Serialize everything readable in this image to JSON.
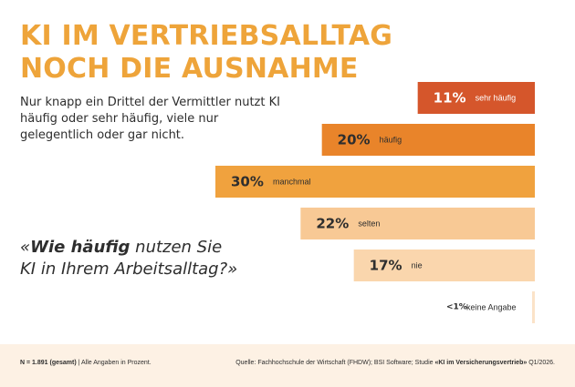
{
  "title": {
    "line1": "KI IM VERTRIEBSALLTAG",
    "line2": "NOCH DIE AUSNAHME"
  },
  "subtitle": "Nur knapp ein Drittel der Vermittler nutzt KI häufig oder sehr häufig, viele nur gelegentlich oder gar nicht.",
  "question": {
    "open": "«",
    "emphasis": "Wie häufig",
    "rest": " nutzen Sie KI in Ihrem Arbeitsalltag?»"
  },
  "footer": {
    "n_label": "N = 1.891 (gesamt)",
    "n_note": " | Alle Angaben in Prozent.",
    "source_prefix": "Quelle: Fachhochschule der Wirtschaft (FHDW); BSI Software; Studie ",
    "source_study": "«KI im Versicherungsvertrieb»",
    "source_suffix": " Q1/2026."
  },
  "colors": {
    "title": "#eea43a",
    "sehr_haeufig": "#d5562b",
    "haeufig": "#e9842a",
    "manchmal": "#f0a23e",
    "selten": "#f8c995",
    "nie": "#fad6ad",
    "keine_angabe": "#fbe3c8",
    "footer_bg": "#fdf1e4"
  },
  "chart_data": {
    "type": "bar",
    "orientation": "horizontal",
    "categories": [
      "sehr häufig",
      "häufig",
      "manchmal",
      "selten",
      "nie",
      "keine Angabe"
    ],
    "values": [
      11,
      20,
      30,
      22,
      17,
      1
    ],
    "value_labels": [
      "11%",
      "20%",
      "30%",
      "22%",
      "17%",
      "<1%"
    ],
    "alignment": "right",
    "unit": "%"
  }
}
